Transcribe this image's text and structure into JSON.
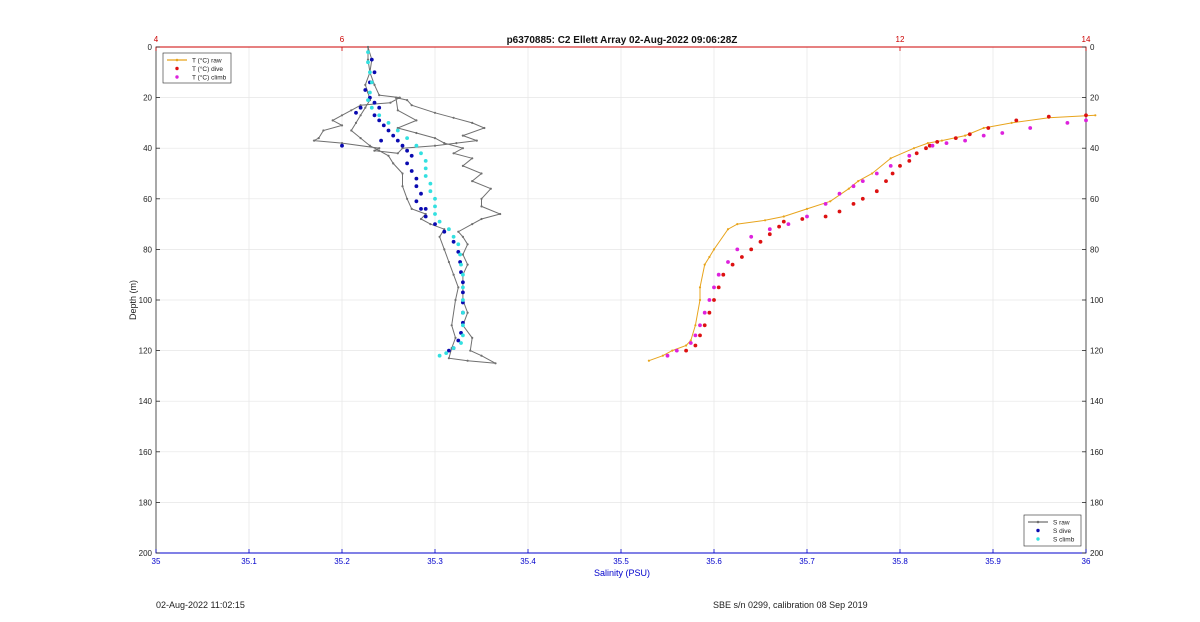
{
  "chart_data": {
    "type": "scatter",
    "title": "p6370885: C2 Ellett Array 02-Aug-2022 09:06:28Z",
    "xlabel": "Salinity (PSU)",
    "ylabel": "Depth (m)",
    "xlim_bottom": [
      35,
      36
    ],
    "xticks_bottom": [
      "35",
      "35.1",
      "35.2",
      "35.3",
      "35.4",
      "35.5",
      "35.6",
      "35.7",
      "35.8",
      "35.9",
      "36"
    ],
    "xlim_top": [
      4,
      14
    ],
    "xticks_top": [
      "4",
      "6",
      "12",
      "14"
    ],
    "ylim": [
      0,
      200
    ],
    "y_reversed": true,
    "yticks": [
      "0",
      "20",
      "40",
      "60",
      "80",
      "100",
      "120",
      "140",
      "160",
      "180",
      "200"
    ],
    "grid": true,
    "colors": {
      "t_raw": "#e8a41c",
      "t_dive": "#dd1111",
      "t_climb": "#dd22dd",
      "s_raw": "#707070",
      "s_dive": "#0a0ab0",
      "s_climb": "#33e0e0",
      "bottom_axis": "#0000cc",
      "top_axis": "#cc0000"
    },
    "legend_temperature": {
      "placement": "top-left",
      "entries": [
        "T (°C) raw",
        "T (°C) dive",
        "T (°C) climb"
      ]
    },
    "legend_salinity": {
      "placement": "bottom-right",
      "entries": [
        "S raw",
        "S dive",
        "S climb"
      ]
    },
    "series": [
      {
        "name": "T (°C) raw",
        "axis": "top",
        "mode": "line",
        "points": [
          [
            14.1,
            27
          ],
          [
            13.6,
            28
          ],
          [
            13.2,
            30
          ],
          [
            12.9,
            32
          ],
          [
            12.7,
            35
          ],
          [
            12.45,
            37
          ],
          [
            12.3,
            38
          ],
          [
            12.15,
            40
          ],
          [
            11.9,
            44
          ],
          [
            11.7,
            50
          ],
          [
            11.55,
            53
          ],
          [
            11.45,
            56
          ],
          [
            11.25,
            61
          ],
          [
            11.0,
            64
          ],
          [
            10.75,
            67
          ],
          [
            10.55,
            68.5
          ],
          [
            10.25,
            70
          ],
          [
            10.15,
            72
          ],
          [
            10.0,
            80
          ],
          [
            9.95,
            83
          ],
          [
            9.9,
            86
          ],
          [
            9.85,
            95
          ],
          [
            9.85,
            100
          ],
          [
            9.8,
            110
          ],
          [
            9.75,
            116
          ],
          [
            9.7,
            118
          ],
          [
            9.55,
            120
          ],
          [
            9.45,
            122
          ],
          [
            9.3,
            124
          ]
        ]
      },
      {
        "name": "T (°C) dive",
        "axis": "top",
        "mode": "markers",
        "points": [
          [
            14.0,
            27
          ],
          [
            13.6,
            27.5
          ],
          [
            13.25,
            29
          ],
          [
            12.95,
            32
          ],
          [
            12.75,
            34.5
          ],
          [
            12.6,
            36
          ],
          [
            12.4,
            37.5
          ],
          [
            12.32,
            39
          ],
          [
            12.28,
            40
          ],
          [
            12.18,
            42
          ],
          [
            12.1,
            45
          ],
          [
            12.0,
            47
          ],
          [
            11.92,
            50
          ],
          [
            11.85,
            53
          ],
          [
            11.75,
            57
          ],
          [
            11.6,
            60
          ],
          [
            11.5,
            62
          ],
          [
            11.35,
            65
          ],
          [
            11.2,
            67
          ],
          [
            10.95,
            68
          ],
          [
            10.75,
            69
          ],
          [
            10.7,
            71
          ],
          [
            10.6,
            74
          ],
          [
            10.5,
            77
          ],
          [
            10.4,
            80
          ],
          [
            10.3,
            83
          ],
          [
            10.2,
            86
          ],
          [
            10.1,
            90
          ],
          [
            10.05,
            95
          ],
          [
            10.0,
            100
          ],
          [
            9.95,
            105
          ],
          [
            9.9,
            110
          ],
          [
            9.85,
            114
          ],
          [
            9.8,
            118
          ],
          [
            9.7,
            120
          ]
        ]
      },
      {
        "name": "T (°C) climb",
        "axis": "top",
        "mode": "markers",
        "points": [
          [
            14.0,
            29
          ],
          [
            13.8,
            30
          ],
          [
            13.4,
            32
          ],
          [
            13.1,
            34
          ],
          [
            12.9,
            35
          ],
          [
            12.7,
            37
          ],
          [
            12.5,
            38
          ],
          [
            12.35,
            39
          ],
          [
            12.1,
            43
          ],
          [
            11.9,
            47
          ],
          [
            11.75,
            50
          ],
          [
            11.6,
            53
          ],
          [
            11.5,
            55
          ],
          [
            11.35,
            58
          ],
          [
            11.2,
            62
          ],
          [
            11.0,
            67
          ],
          [
            10.8,
            70
          ],
          [
            10.6,
            72
          ],
          [
            10.4,
            75
          ],
          [
            10.25,
            80
          ],
          [
            10.15,
            85
          ],
          [
            10.05,
            90
          ],
          [
            10.0,
            95
          ],
          [
            9.95,
            100
          ],
          [
            9.9,
            105
          ],
          [
            9.85,
            110
          ],
          [
            9.8,
            114
          ],
          [
            9.75,
            117
          ],
          [
            9.6,
            120
          ],
          [
            9.5,
            122
          ]
        ]
      },
      {
        "name": "S raw",
        "axis": "bottom",
        "mode": "line",
        "points": [
          [
            35.228,
            0
          ],
          [
            35.232,
            5
          ],
          [
            35.23,
            10
          ],
          [
            35.235,
            15
          ],
          [
            35.24,
            19
          ],
          [
            35.262,
            20
          ],
          [
            35.252,
            22
          ],
          [
            35.22,
            23
          ],
          [
            35.21,
            25
          ],
          [
            35.2,
            27
          ],
          [
            35.19,
            29
          ],
          [
            35.2,
            31
          ],
          [
            35.18,
            33
          ],
          [
            35.175,
            36
          ],
          [
            35.17,
            37
          ],
          [
            35.2,
            38
          ],
          [
            35.24,
            40
          ],
          [
            35.235,
            41
          ],
          [
            35.26,
            42
          ],
          [
            35.265,
            40
          ],
          [
            35.3,
            39
          ],
          [
            35.323,
            38
          ],
          [
            35.345,
            37
          ],
          [
            35.33,
            35
          ],
          [
            35.353,
            32
          ],
          [
            35.34,
            30
          ],
          [
            35.32,
            28
          ],
          [
            35.3,
            26
          ],
          [
            35.275,
            23
          ],
          [
            35.27,
            21
          ],
          [
            35.258,
            20
          ],
          [
            35.26,
            25
          ],
          [
            35.28,
            29
          ],
          [
            35.26,
            32
          ],
          [
            35.28,
            34
          ],
          [
            35.3,
            36
          ],
          [
            35.31,
            38
          ],
          [
            35.33,
            40
          ],
          [
            35.32,
            42
          ],
          [
            35.34,
            44
          ],
          [
            35.33,
            47
          ],
          [
            35.35,
            50
          ],
          [
            35.34,
            53
          ],
          [
            35.36,
            56
          ],
          [
            35.35,
            60
          ],
          [
            35.35,
            63
          ],
          [
            35.37,
            66
          ],
          [
            35.35,
            68
          ],
          [
            35.34,
            70
          ],
          [
            35.325,
            73
          ],
          [
            35.33,
            75
          ],
          [
            35.335,
            78
          ],
          [
            35.33,
            82
          ],
          [
            35.335,
            86
          ],
          [
            35.33,
            90
          ],
          [
            35.33,
            95
          ],
          [
            35.33,
            100
          ],
          [
            35.335,
            105
          ],
          [
            35.33,
            110
          ],
          [
            35.34,
            115
          ],
          [
            35.338,
            120
          ],
          [
            35.35,
            122
          ],
          [
            35.365,
            125
          ],
          [
            35.335,
            124
          ],
          [
            35.315,
            123
          ],
          [
            35.318,
            119
          ],
          [
            35.322,
            115
          ],
          [
            35.318,
            110
          ],
          [
            35.322,
            100
          ],
          [
            35.325,
            95
          ],
          [
            35.32,
            90
          ],
          [
            35.315,
            85
          ],
          [
            35.31,
            80
          ],
          [
            35.305,
            75
          ],
          [
            35.31,
            72
          ],
          [
            35.295,
            70
          ],
          [
            35.285,
            68
          ],
          [
            35.29,
            66
          ],
          [
            35.275,
            64
          ],
          [
            35.27,
            60
          ],
          [
            35.265,
            55
          ],
          [
            35.265,
            50
          ],
          [
            35.255,
            46
          ],
          [
            35.25,
            43
          ],
          [
            35.24,
            41
          ],
          [
            35.23,
            39
          ],
          [
            35.22,
            36
          ],
          [
            35.21,
            33
          ],
          [
            35.215,
            30
          ],
          [
            35.22,
            27
          ],
          [
            35.225,
            24
          ],
          [
            35.23,
            21
          ],
          [
            35.228,
            18
          ],
          [
            35.225,
            15
          ],
          [
            35.23,
            10
          ],
          [
            35.228,
            5
          ],
          [
            35.228,
            0
          ]
        ]
      },
      {
        "name": "S dive",
        "axis": "bottom",
        "mode": "markers",
        "points": [
          [
            35.232,
            5
          ],
          [
            35.235,
            10
          ],
          [
            35.23,
            14
          ],
          [
            35.225,
            17
          ],
          [
            35.23,
            20
          ],
          [
            35.235,
            22
          ],
          [
            35.24,
            24
          ],
          [
            35.235,
            27
          ],
          [
            35.24,
            29
          ],
          [
            35.245,
            31
          ],
          [
            35.25,
            33
          ],
          [
            35.255,
            35
          ],
          [
            35.26,
            37
          ],
          [
            35.265,
            39
          ],
          [
            35.27,
            41
          ],
          [
            35.275,
            43
          ],
          [
            35.27,
            46
          ],
          [
            35.275,
            49
          ],
          [
            35.28,
            52
          ],
          [
            35.28,
            55
          ],
          [
            35.285,
            58
          ],
          [
            35.28,
            61
          ],
          [
            35.285,
            64
          ],
          [
            35.29,
            67
          ],
          [
            35.3,
            70
          ],
          [
            35.31,
            73
          ],
          [
            35.32,
            77
          ],
          [
            35.325,
            81
          ],
          [
            35.327,
            85
          ],
          [
            35.328,
            89
          ],
          [
            35.33,
            93
          ],
          [
            35.33,
            97
          ],
          [
            35.33,
            101
          ],
          [
            35.33,
            105
          ],
          [
            35.33,
            109
          ],
          [
            35.328,
            113
          ],
          [
            35.325,
            116
          ],
          [
            35.32,
            119
          ],
          [
            35.2,
            39
          ],
          [
            35.215,
            26
          ],
          [
            35.22,
            24
          ],
          [
            35.242,
            37
          ],
          [
            35.29,
            64
          ],
          [
            35.315,
            120
          ]
        ]
      },
      {
        "name": "S climb",
        "axis": "bottom",
        "mode": "markers",
        "points": [
          [
            35.228,
            2
          ],
          [
            35.228,
            6
          ],
          [
            35.23,
            10
          ],
          [
            35.232,
            14
          ],
          [
            35.23,
            18
          ],
          [
            35.228,
            21
          ],
          [
            35.232,
            24
          ],
          [
            35.24,
            27
          ],
          [
            35.25,
            30
          ],
          [
            35.26,
            33
          ],
          [
            35.27,
            36
          ],
          [
            35.28,
            39
          ],
          [
            35.285,
            42
          ],
          [
            35.29,
            45
          ],
          [
            35.29,
            48
          ],
          [
            35.29,
            51
          ],
          [
            35.295,
            54
          ],
          [
            35.295,
            57
          ],
          [
            35.3,
            60
          ],
          [
            35.3,
            63
          ],
          [
            35.3,
            66
          ],
          [
            35.305,
            69
          ],
          [
            35.315,
            72
          ],
          [
            35.32,
            75
          ],
          [
            35.325,
            78
          ],
          [
            35.327,
            82
          ],
          [
            35.328,
            86
          ],
          [
            35.33,
            90
          ],
          [
            35.33,
            95
          ],
          [
            35.33,
            100
          ],
          [
            35.33,
            105
          ],
          [
            35.33,
            110
          ],
          [
            35.33,
            114
          ],
          [
            35.328,
            117
          ],
          [
            35.32,
            119
          ],
          [
            35.312,
            121
          ],
          [
            35.305,
            122
          ]
        ]
      }
    ]
  },
  "footer": {
    "date_left": "02-Aug-2022 11:02:15",
    "sensor_right": "SBE s/n 0299, calibration 08 Sep 2019"
  }
}
